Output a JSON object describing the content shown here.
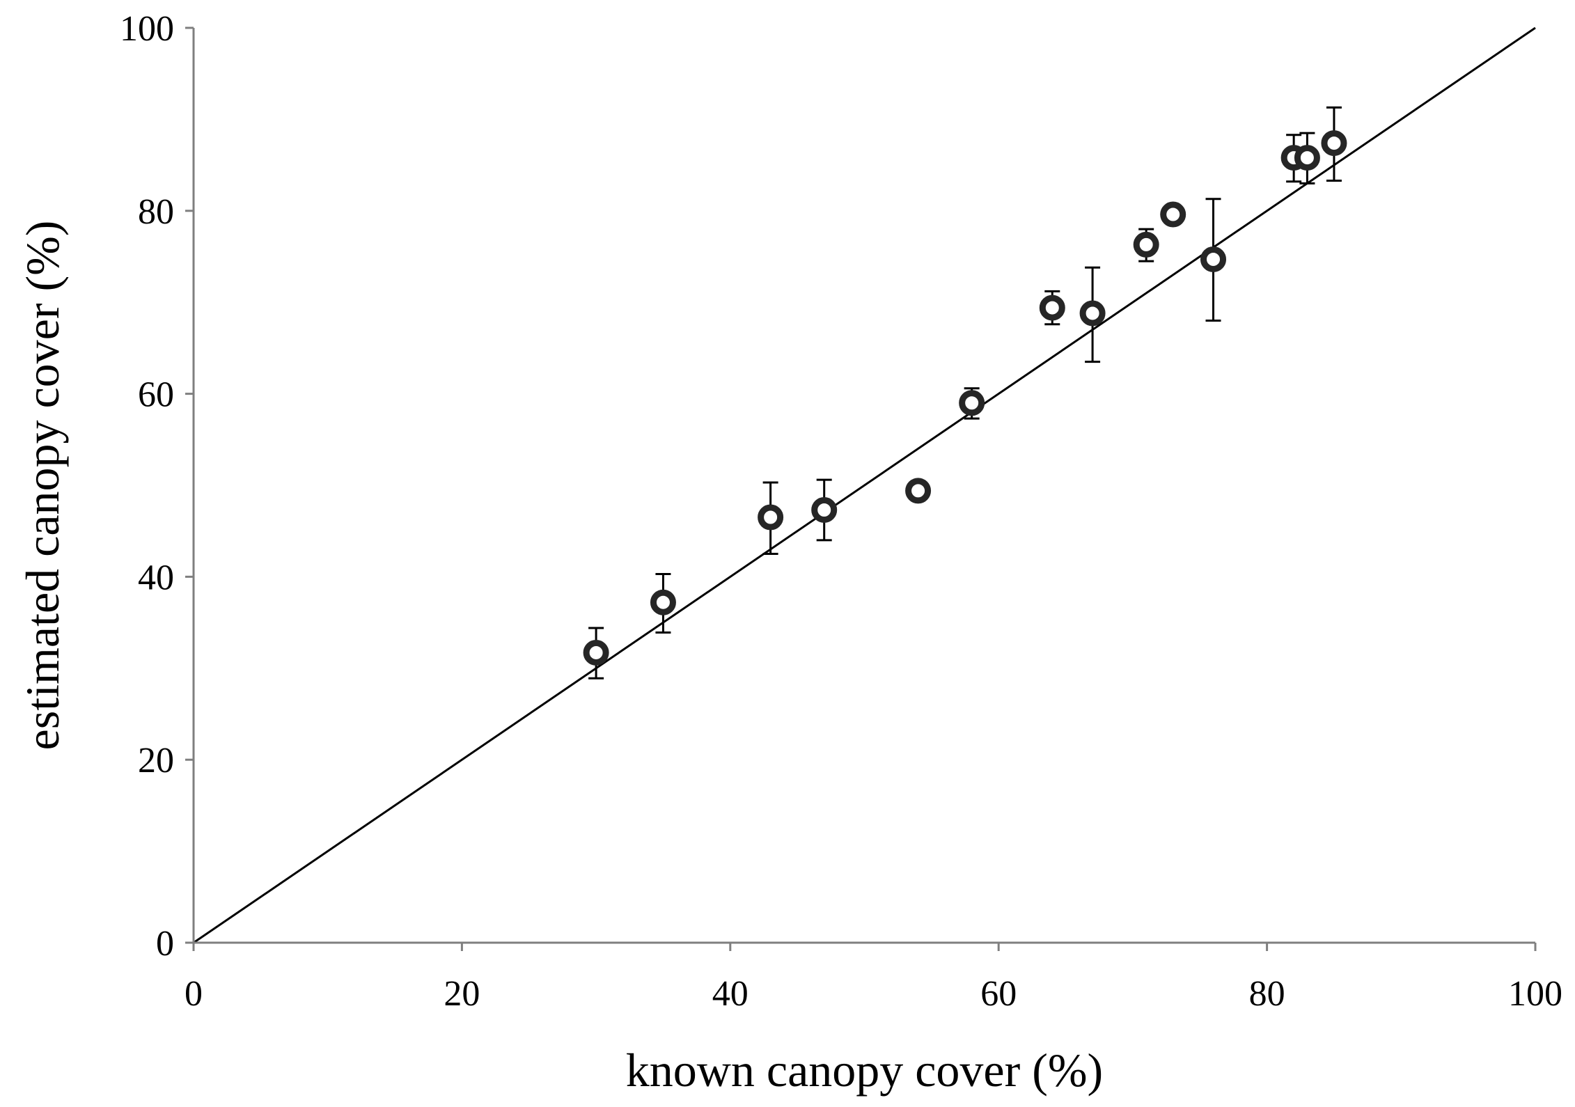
{
  "chart_data": {
    "type": "scatter",
    "title": "",
    "xlabel": "known canopy cover (%)",
    "ylabel": "estimated canopy cover (%)",
    "xlim": [
      0,
      100
    ],
    "ylim": [
      0,
      100
    ],
    "x_ticks": [
      "0",
      "20",
      "40",
      "60",
      "80",
      "100"
    ],
    "y_ticks": [
      "0",
      "20",
      "40",
      "60",
      "80",
      "100"
    ],
    "grid": false,
    "legend": "none",
    "reference_line": {
      "x": [
        0,
        100
      ],
      "y": [
        0,
        100
      ]
    },
    "colors": {
      "marker": "#262626",
      "axis": "#7f7f7f",
      "line": "#000000"
    },
    "series": [
      {
        "points": [
          {
            "x": 30,
            "y": 31.7,
            "err_low": 28.9,
            "err_high": 34.4
          },
          {
            "x": 35,
            "y": 37.2,
            "err_low": 33.9,
            "err_high": 40.3
          },
          {
            "x": 43,
            "y": 46.5,
            "err_low": 42.5,
            "err_high": 50.3
          },
          {
            "x": 47,
            "y": 47.3,
            "err_low": 44.0,
            "err_high": 50.6
          },
          {
            "x": 54,
            "y": 49.4,
            "err_low": 48.6,
            "err_high": 50.1
          },
          {
            "x": 58,
            "y": 59.0,
            "err_low": 57.3,
            "err_high": 60.6
          },
          {
            "x": 64,
            "y": 69.4,
            "err_low": 67.6,
            "err_high": 71.2
          },
          {
            "x": 67,
            "y": 68.8,
            "err_low": 63.5,
            "err_high": 73.8
          },
          {
            "x": 71,
            "y": 76.3,
            "err_low": 74.5,
            "err_high": 78.0
          },
          {
            "x": 73,
            "y": 79.6,
            "err_low": 78.8,
            "err_high": 80.4
          },
          {
            "x": 76,
            "y": 74.7,
            "err_low": 68.0,
            "err_high": 81.3
          },
          {
            "x": 82,
            "y": 85.8,
            "err_low": 83.2,
            "err_high": 88.3
          },
          {
            "x": 83,
            "y": 85.8,
            "err_low": 83.0,
            "err_high": 88.5
          },
          {
            "x": 85,
            "y": 87.4,
            "err_low": 83.3,
            "err_high": 91.3
          }
        ]
      }
    ]
  }
}
